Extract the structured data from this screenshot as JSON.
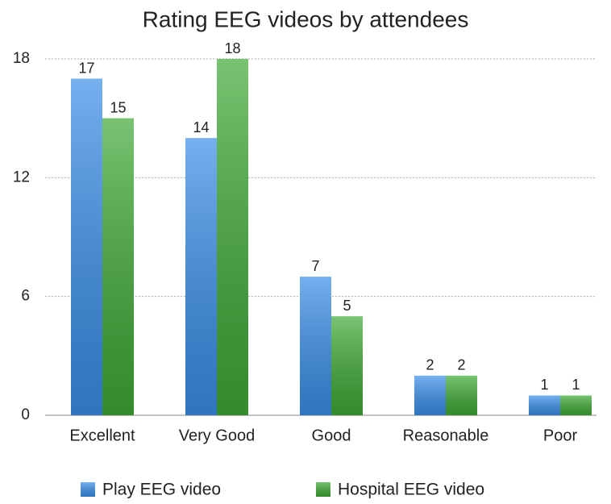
{
  "chart_data": {
    "type": "bar",
    "title": "Rating EEG videos by attendees",
    "categories": [
      "Excellent",
      "Very Good",
      "Good",
      "Reasonable",
      "Poor"
    ],
    "series": [
      {
        "name": "Play EEG video",
        "color": "#3a8fe8",
        "values": [
          17,
          14,
          7,
          2,
          1
        ]
      },
      {
        "name": "Hospital EEG video",
        "color": "#3faa36",
        "values": [
          15,
          18,
          5,
          2,
          1
        ]
      }
    ],
    "ylim": [
      0,
      18
    ],
    "yticks": [
      0,
      6,
      12,
      18
    ],
    "grid": true,
    "legend": "bottom"
  }
}
